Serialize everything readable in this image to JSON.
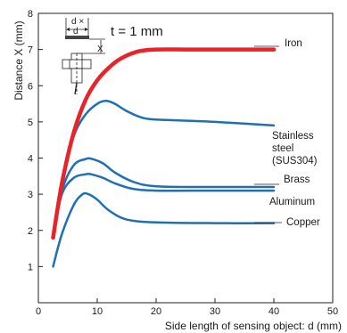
{
  "chart_data": {
    "type": "line",
    "xlabel": "Side length of sensing object: d (mm)",
    "ylabel": "Distance X (mm)",
    "xlim": [
      0,
      50
    ],
    "ylim": [
      0,
      8
    ],
    "xticks": [
      0,
      10,
      20,
      30,
      40,
      50
    ],
    "yticks": [
      1,
      2,
      3,
      4,
      5,
      6,
      7,
      8
    ],
    "grid": false,
    "annotation": "t = 1 mm",
    "inset_labels": {
      "d_times": "d ×",
      "d": "d",
      "x": "X"
    },
    "series": [
      {
        "name": "Iron",
        "label_lines": [
          "Iron"
        ],
        "color": "#e8242a",
        "x": [
          2.5,
          4,
          6,
          8,
          10,
          12,
          14,
          17,
          20,
          25,
          30,
          35,
          40
        ],
        "y": [
          1.8,
          3.3,
          4.7,
          5.6,
          6.15,
          6.5,
          6.75,
          6.95,
          7.0,
          7.0,
          7.0,
          7.0,
          7.0
        ]
      },
      {
        "name": "Stainless steel (SUS304)",
        "label_lines": [
          "Stainless",
          "steel",
          "(SUS304)"
        ],
        "color": "#1f6fb5",
        "x": [
          2.5,
          4,
          6,
          8,
          10,
          11.5,
          13,
          15,
          18,
          22,
          30,
          40
        ],
        "y": [
          1.8,
          3.4,
          4.6,
          5.2,
          5.5,
          5.58,
          5.5,
          5.3,
          5.1,
          5.05,
          5.0,
          4.9
        ]
      },
      {
        "name": "Brass",
        "label_lines": [
          "Brass"
        ],
        "color": "#1f6fb5",
        "x": [
          2.5,
          4,
          6,
          8,
          9,
          11,
          13,
          16,
          20,
          30,
          40
        ],
        "y": [
          1.85,
          3.1,
          3.8,
          3.97,
          3.98,
          3.85,
          3.6,
          3.35,
          3.22,
          3.2,
          3.2
        ]
      },
      {
        "name": "Aluminum",
        "label_lines": [
          "Aluminum"
        ],
        "color": "#1f6fb5",
        "x": [
          2.5,
          4,
          6,
          8,
          9,
          11,
          13,
          16,
          20,
          30,
          40
        ],
        "y": [
          1.85,
          3.0,
          3.45,
          3.55,
          3.55,
          3.45,
          3.3,
          3.15,
          3.1,
          3.1,
          3.1
        ]
      },
      {
        "name": "Copper",
        "label_lines": [
          "Copper"
        ],
        "color": "#1f6fb5",
        "x": [
          2.5,
          4,
          6,
          7.5,
          8.5,
          10,
          12,
          15,
          20,
          30,
          40
        ],
        "y": [
          1.0,
          1.9,
          2.7,
          3.0,
          3.0,
          2.85,
          2.55,
          2.3,
          2.22,
          2.2,
          2.2
        ]
      }
    ]
  }
}
